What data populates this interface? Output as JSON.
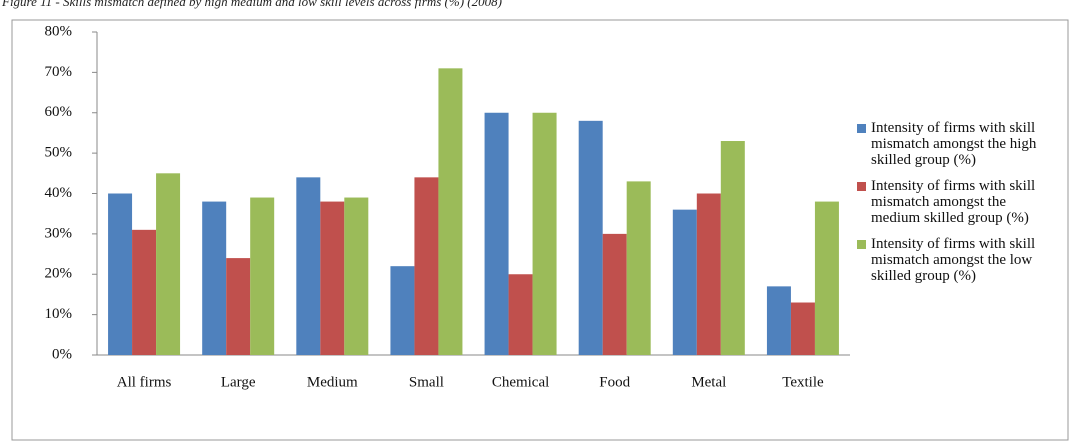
{
  "chart_data": {
    "type": "bar",
    "title": "Figure 11 - Skills mismatch defined by high medium and low skill levels across firms (%) (2008)",
    "categories": [
      "All firms",
      "Large",
      "Medium",
      "Small",
      "Chemical",
      "Food",
      "Metal",
      "Textile"
    ],
    "series": [
      {
        "name": "Intensity of firms with skill mismatch amongst the high skilled group (%)",
        "color": "#4f81bd",
        "values": [
          40,
          38,
          44,
          22,
          60,
          58,
          36,
          17
        ]
      },
      {
        "name": "Intensity of firms with skill mismatch amongst the medium skilled group (%)",
        "color": "#c0504d",
        "values": [
          31,
          24,
          38,
          44,
          20,
          30,
          40,
          13
        ]
      },
      {
        "name": "Intensity of firms with skill mismatch amongst the low skilled group (%)",
        "color": "#9bbb59",
        "values": [
          45,
          39,
          39,
          71,
          60,
          43,
          53,
          38
        ]
      }
    ],
    "ylim": [
      0,
      80
    ],
    "yticks": [
      {
        "value": 0,
        "label": "0%"
      },
      {
        "value": 10,
        "label": "10%"
      },
      {
        "value": 20,
        "label": "20%"
      },
      {
        "value": 30,
        "label": "30%"
      },
      {
        "value": 40,
        "label": "40%"
      },
      {
        "value": 50,
        "label": "50%"
      },
      {
        "value": 60,
        "label": "60%"
      },
      {
        "value": 70,
        "label": "70%"
      },
      {
        "value": 80,
        "label": "80%"
      }
    ],
    "grid": false,
    "legend": "right"
  }
}
